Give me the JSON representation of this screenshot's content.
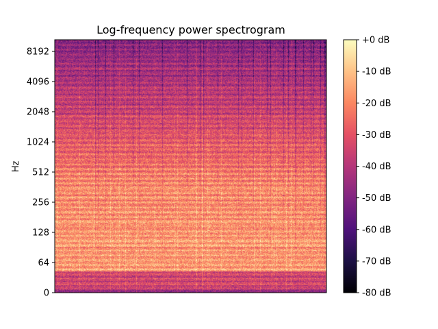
{
  "chart_data": {
    "type": "heatmap",
    "title": "Log-frequency power spectrogram",
    "xlabel": "",
    "ylabel": "Hz",
    "y_scale": "log2-frequency",
    "y_ticks": [
      {
        "label": "0",
        "value": 0
      },
      {
        "label": "64",
        "value": 64
      },
      {
        "label": "128",
        "value": 128
      },
      {
        "label": "256",
        "value": 256
      },
      {
        "label": "512",
        "value": 512
      },
      {
        "label": "1024",
        "value": 1024
      },
      {
        "label": "2048",
        "value": 2048
      },
      {
        "label": "4096",
        "value": 4096
      },
      {
        "label": "8192",
        "value": 8192
      }
    ],
    "x_ticks": [],
    "colormap": "magma",
    "colorbar": {
      "range_db": [
        -80,
        0
      ],
      "ticks": [
        {
          "label": "+0 dB",
          "value": 0
        },
        {
          "label": "-10 dB",
          "value": -10
        },
        {
          "label": "-20 dB",
          "value": -20
        },
        {
          "label": "-30 dB",
          "value": -30
        },
        {
          "label": "-40 dB",
          "value": -40
        },
        {
          "label": "-50 dB",
          "value": -50
        },
        {
          "label": "-60 dB",
          "value": -60
        },
        {
          "label": "-70 dB",
          "value": -70
        },
        {
          "label": "-80 dB",
          "value": -80
        }
      ]
    },
    "colors": {
      "magma_stops": [
        "#000004",
        "#1c1044",
        "#4f127b",
        "#812581",
        "#b5367a",
        "#e55064",
        "#fb8761",
        "#fec287",
        "#fcfdbf"
      ]
    }
  }
}
